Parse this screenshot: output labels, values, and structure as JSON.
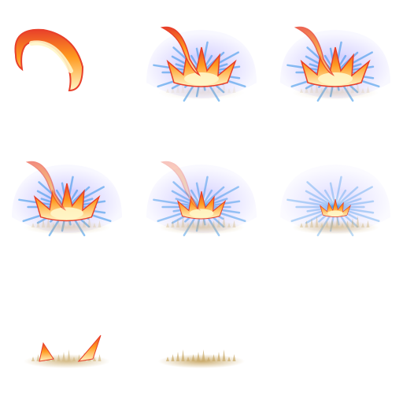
{
  "sprite_sheet": {
    "grid": {
      "columns": 3,
      "rows": 3
    },
    "frame_count": 8,
    "frames": [
      {
        "index": 1,
        "stage": "fire-streak",
        "halo": 0,
        "flame": 0,
        "dust": 0,
        "streak": 1
      },
      {
        "index": 2,
        "stage": "impact",
        "halo": 1,
        "flame": 1,
        "dust": 0.2,
        "streak": 1
      },
      {
        "index": 3,
        "stage": "impact",
        "halo": 1,
        "flame": 1,
        "dust": 0.3,
        "streak": 0.8
      },
      {
        "index": 4,
        "stage": "burst",
        "halo": 1,
        "flame": 0.95,
        "dust": 0.4,
        "streak": 0.6
      },
      {
        "index": 5,
        "stage": "burst",
        "halo": 0.85,
        "flame": 0.7,
        "dust": 0.5,
        "streak": 0.3
      },
      {
        "index": 6,
        "stage": "fade",
        "halo": 0.6,
        "flame": 0.45,
        "dust": 0.6,
        "streak": 0
      },
      {
        "index": 7,
        "stage": "embers",
        "halo": 0,
        "flame": 0.35,
        "dust": 0.8,
        "streak": 0
      },
      {
        "index": 8,
        "stage": "dust",
        "halo": 0,
        "flame": 0,
        "dust": 1,
        "streak": 0
      }
    ],
    "colors": {
      "background": "#ffffff",
      "flame_outer": "#e8402a",
      "flame_mid": "#ff9a1f",
      "flame_core": "#fff6c8",
      "halo": "#7a6cff",
      "rays": "#2f8fe8",
      "dust": "#c9a968"
    }
  }
}
